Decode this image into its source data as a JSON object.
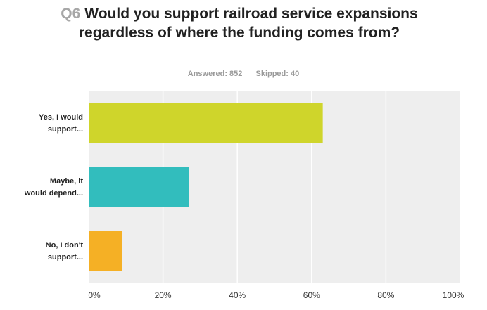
{
  "question": {
    "number": "Q6",
    "text": "Would you support railroad service expansions regardless of where the funding comes from?"
  },
  "stats": {
    "answered": "Answered: 852",
    "skipped": "Skipped: 40"
  },
  "chart_data": {
    "type": "bar",
    "orientation": "horizontal",
    "categories": [
      "Yes, I would support...",
      "Maybe, it would depend...",
      "No, I don't support..."
    ],
    "category_lines": [
      [
        "Yes, I would",
        "support..."
      ],
      [
        "Maybe, it",
        "would depend..."
      ],
      [
        "No, I don't",
        "support..."
      ]
    ],
    "values": [
      63,
      27,
      9
    ],
    "colors": [
      "#cfd52b",
      "#32bdbd",
      "#f5b025"
    ],
    "xlim": [
      0,
      100
    ],
    "ticks": [
      "0%",
      "20%",
      "40%",
      "60%",
      "80%",
      "100%"
    ],
    "grid": true
  }
}
